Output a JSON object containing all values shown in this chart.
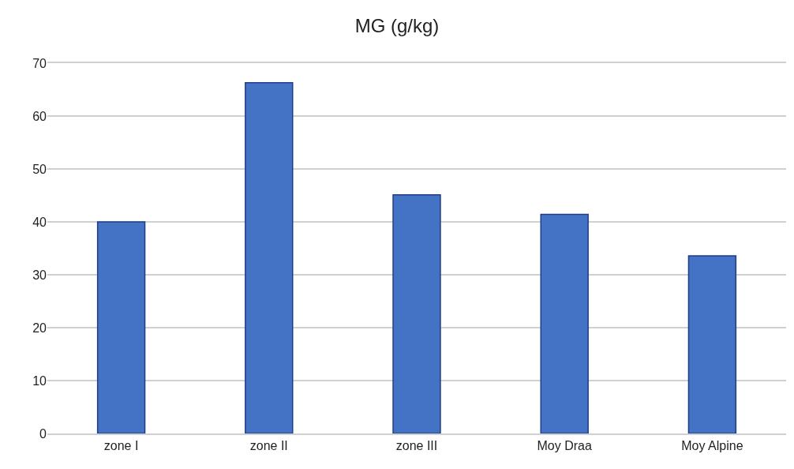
{
  "chart_data": {
    "type": "bar",
    "title": "MG (g/kg)",
    "categories": [
      "zone I",
      "zone II",
      "zone III",
      "Moy Draa",
      "Moy Alpine"
    ],
    "values": [
      40,
      66.3,
      45.1,
      41.4,
      33.6
    ],
    "color": "#4472c4",
    "ylim": [
      0,
      70
    ],
    "yticks": [
      0,
      10,
      20,
      30,
      40,
      50,
      60,
      70
    ],
    "grid": "y"
  }
}
